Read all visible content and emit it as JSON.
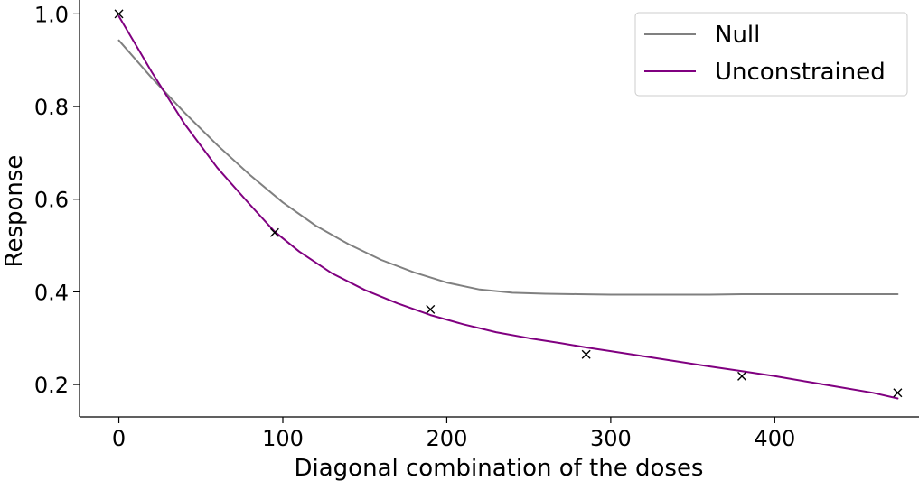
{
  "chart_data": {
    "type": "line",
    "title": "",
    "xlabel": "Diagonal combination of the doses",
    "ylabel": "Response",
    "xlim": [
      -24,
      488
    ],
    "ylim": [
      0.13,
      1.03
    ],
    "xticks": [
      0,
      100,
      200,
      300,
      400
    ],
    "xtick_labels": [
      "0",
      "100",
      "200",
      "300",
      "400"
    ],
    "yticks": [
      0.2,
      0.4,
      0.6,
      0.8,
      1.0
    ],
    "ytick_labels": [
      "0.2",
      "0.4",
      "0.6",
      "0.8",
      "1.0"
    ],
    "grid": false,
    "legend_position": "top-right",
    "series": [
      {
        "name": "Null",
        "color": "#808080",
        "x": [
          0,
          20,
          40,
          60,
          80,
          100,
          120,
          140,
          160,
          180,
          200,
          220,
          240,
          260,
          280,
          300,
          320,
          340,
          360,
          380,
          400,
          420,
          440,
          460,
          475
        ],
        "y": [
          0.943,
          0.862,
          0.787,
          0.717,
          0.652,
          0.593,
          0.543,
          0.503,
          0.469,
          0.442,
          0.42,
          0.405,
          0.398,
          0.396,
          0.395,
          0.394,
          0.394,
          0.394,
          0.394,
          0.395,
          0.395,
          0.395,
          0.395,
          0.395,
          0.395
        ]
      },
      {
        "name": "Unconstrained",
        "color": "#800080",
        "x": [
          0,
          10,
          20,
          40,
          60,
          80,
          95,
          110,
          130,
          150,
          170,
          190,
          210,
          230,
          250,
          270,
          285,
          300,
          320,
          340,
          360,
          380,
          400,
          420,
          440,
          460,
          475
        ],
        "y": [
          0.995,
          0.935,
          0.875,
          0.763,
          0.668,
          0.588,
          0.53,
          0.487,
          0.44,
          0.404,
          0.375,
          0.35,
          0.33,
          0.313,
          0.3,
          0.289,
          0.28,
          0.272,
          0.261,
          0.25,
          0.239,
          0.229,
          0.218,
          0.206,
          0.194,
          0.182,
          0.17
        ]
      }
    ],
    "observations": {
      "marker": "x",
      "color": "#000000",
      "x": [
        0,
        95,
        190,
        285,
        380,
        475
      ],
      "y": [
        1.0,
        0.528,
        0.362,
        0.265,
        0.218,
        0.182
      ]
    }
  }
}
